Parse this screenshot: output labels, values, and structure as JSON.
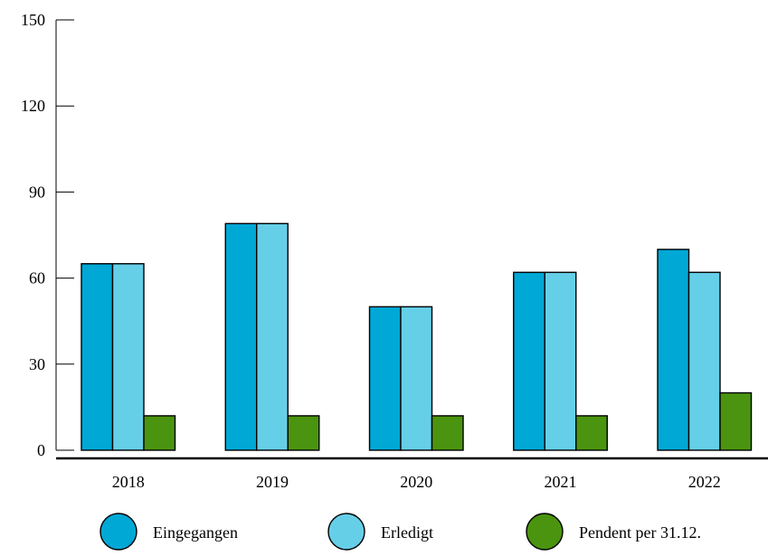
{
  "chart_data": {
    "type": "bar",
    "title": "",
    "xlabel": "",
    "ylabel": "",
    "categories": [
      "2018",
      "2019",
      "2020",
      "2021",
      "2022"
    ],
    "series": [
      {
        "name": "Eingegangen",
        "color": "#00a8d6",
        "values": [
          65,
          79,
          50,
          62,
          70
        ]
      },
      {
        "name": "Erledigt",
        "color": "#66cfe8",
        "values": [
          65,
          79,
          50,
          62,
          62
        ]
      },
      {
        "name": "Pendent per 31.12.",
        "color": "#4a9410",
        "values": [
          12,
          12,
          12,
          12,
          20
        ]
      }
    ],
    "ylim": [
      0,
      150
    ],
    "yticks": [
      "0",
      "30",
      "60",
      "90",
      "120",
      "150"
    ],
    "grid": false,
    "legend_position": "bottom"
  }
}
